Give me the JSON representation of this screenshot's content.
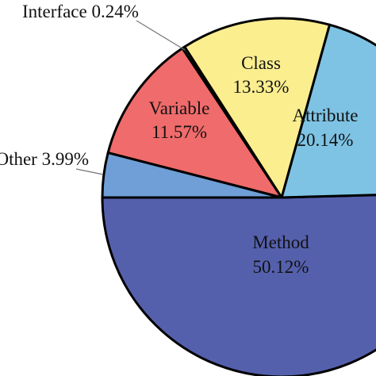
{
  "chart_data": {
    "type": "pie",
    "title": "",
    "slices": [
      {
        "label": "Method",
        "value": 50.12,
        "display": "50.12%",
        "color": "#5560ad"
      },
      {
        "label": "Attribute",
        "value": 20.14,
        "display": "20.14%",
        "color": "#7ec3e4"
      },
      {
        "label": "Class",
        "value": 13.33,
        "display": "13.33%",
        "color": "#fbee8f"
      },
      {
        "label": "Interface",
        "value": 0.24,
        "display": "0.24%",
        "color": "#4caf50"
      },
      {
        "label": "Variable",
        "value": 11.57,
        "display": "11.57%",
        "color": "#f06b6b"
      },
      {
        "label": "Other",
        "value": 3.99,
        "display": "3.99%",
        "color": "#6f9fd6"
      }
    ]
  }
}
